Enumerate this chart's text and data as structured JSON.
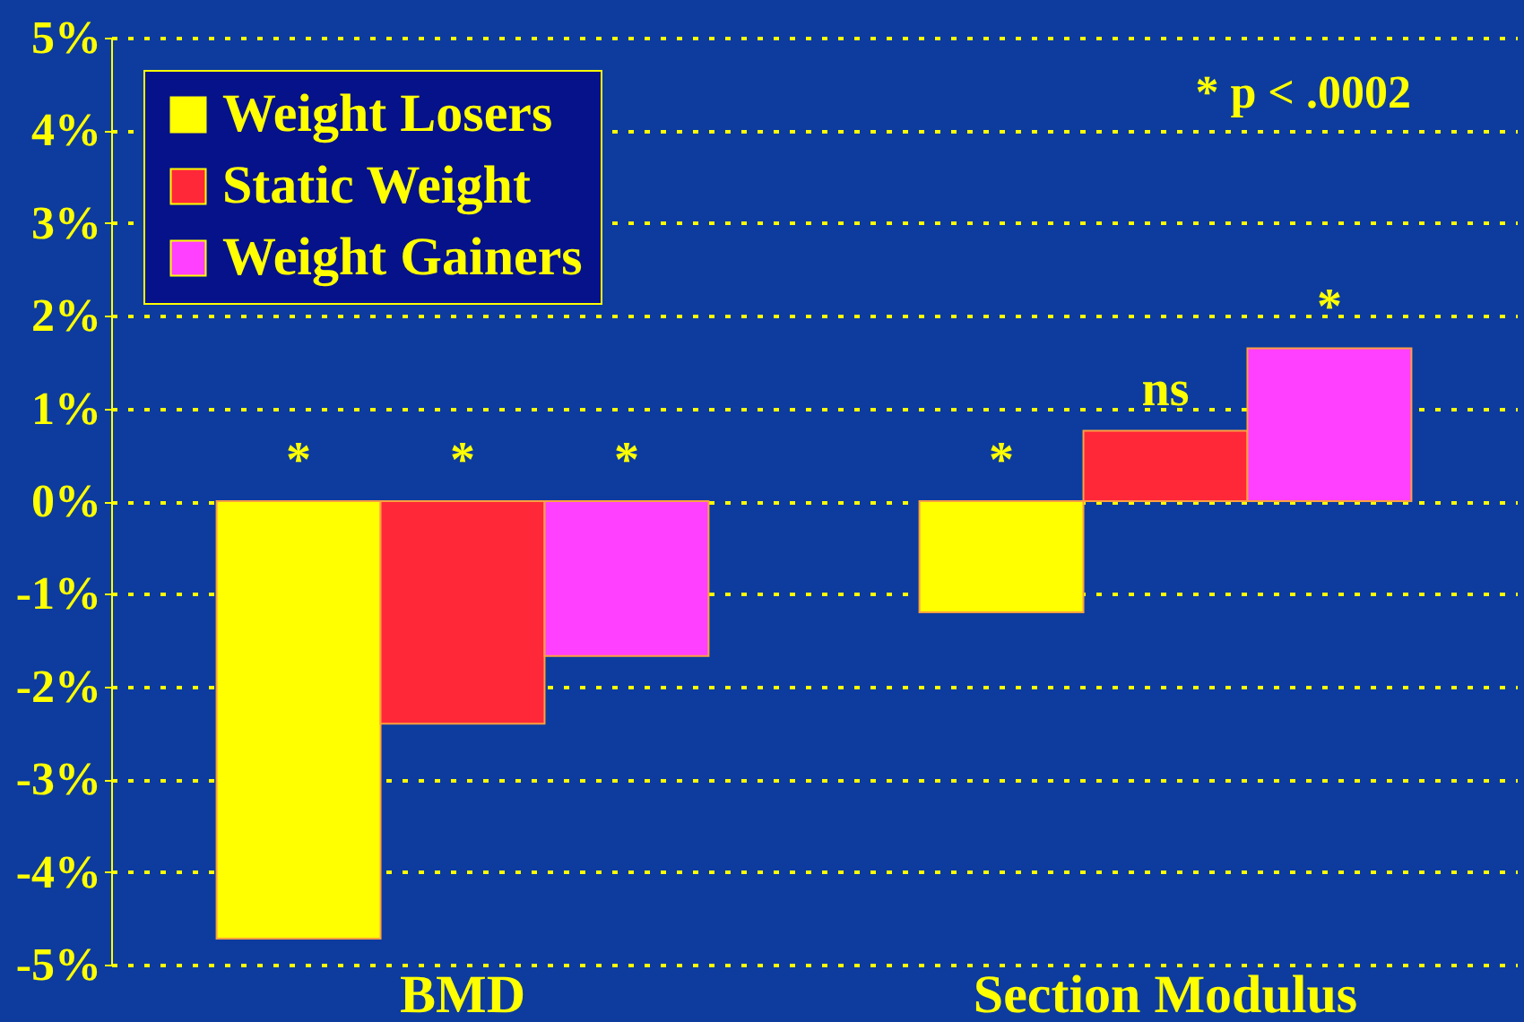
{
  "chart_data": {
    "type": "bar",
    "categories": [
      "BMD",
      "Section Modulus"
    ],
    "series": [
      {
        "name": "Weight Losers",
        "color": "#ffff00",
        "values": [
          -4.72,
          -1.2
        ],
        "value_labels": [
          "*",
          "*"
        ]
      },
      {
        "name": "Static Weight",
        "color": "#ff2838",
        "values": [
          -2.4,
          0.76
        ],
        "value_labels": [
          "*",
          "ns"
        ]
      },
      {
        "name": "Weight Gainers",
        "color": "#ff40ff",
        "values": [
          -1.67,
          1.65
        ],
        "value_labels": [
          "*",
          "*"
        ]
      }
    ],
    "ylim": [
      -5,
      5
    ],
    "yticks": [
      {
        "value": -5,
        "label": "-5%"
      },
      {
        "value": -4,
        "label": "-4%"
      },
      {
        "value": -3,
        "label": "-3%"
      },
      {
        "value": -2,
        "label": "-2%"
      },
      {
        "value": -1,
        "label": "-1%"
      },
      {
        "value": 0,
        "label": "0%"
      },
      {
        "value": 1,
        "label": "1%"
      },
      {
        "value": 2,
        "label": "2%"
      },
      {
        "value": 3,
        "label": "3%"
      },
      {
        "value": 4,
        "label": "4%"
      },
      {
        "value": 5,
        "label": "5%"
      }
    ],
    "grid": "y",
    "legend": "top left",
    "annotations": [
      "* p < .0002"
    ]
  }
}
